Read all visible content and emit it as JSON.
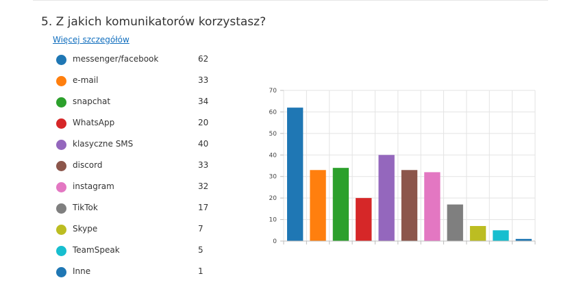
{
  "question": {
    "title": "5.  Z jakich komunikatorów korzystasz?",
    "details_link": "Więcej szczegółów"
  },
  "chart_data": {
    "type": "bar",
    "categories": [
      "messenger/facebook",
      "e-mail",
      "snapchat",
      "WhatsApp",
      "klasyczne SMS",
      "discord",
      "instagram",
      "TikTok",
      "Skype",
      "TeamSpeak",
      "Inne"
    ],
    "values": [
      62,
      33,
      34,
      20,
      40,
      33,
      32,
      17,
      7,
      5,
      1
    ],
    "colors": [
      "#1f77b4",
      "#ff7f0e",
      "#2ca02c",
      "#d62728",
      "#9467bd",
      "#8c564b",
      "#e377c2",
      "#7f7f7f",
      "#bcbd22",
      "#17becf",
      "#1f77b4"
    ],
    "ylim": [
      0,
      70
    ],
    "yticks": [
      "0",
      "10",
      "20",
      "30",
      "40",
      "50",
      "60",
      "70"
    ],
    "grid": true,
    "legend": "left"
  }
}
